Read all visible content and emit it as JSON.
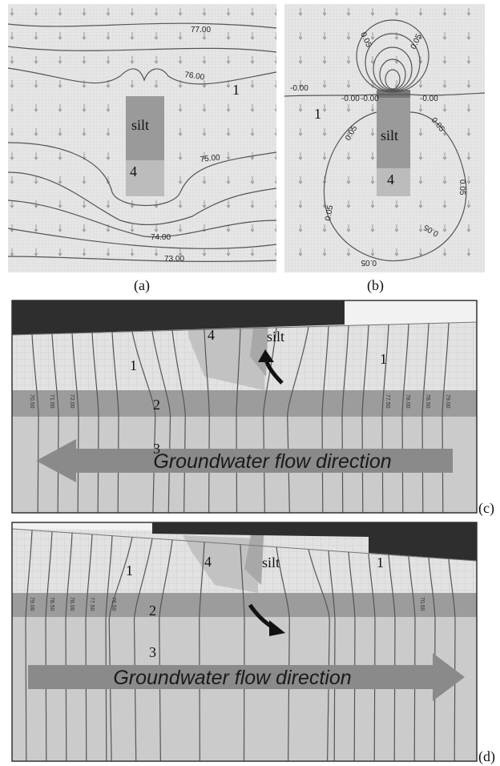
{
  "panel_a": {
    "caption": "(a)",
    "contour_labels": [
      "77.00",
      "76.00",
      "75.00",
      "74.00",
      "73.00"
    ],
    "zone_1": "1",
    "silt": "silt",
    "zone_4": "4"
  },
  "panel_b": {
    "caption": "(b)",
    "contour_labels_zero": [
      "-0.00",
      "-0.00",
      "-0.00",
      "-0.00"
    ],
    "contour_labels": [
      "0.05",
      "0.05",
      "0.05",
      "0.05",
      "0.05",
      "0.05",
      "0.05",
      "0.05"
    ],
    "zone_1": "1",
    "silt": "silt",
    "zone_4": "4"
  },
  "panel_c": {
    "caption": "(c)",
    "zone_1_left": "1",
    "zone_4": "4",
    "silt": "silt",
    "zone_1_right": "1",
    "zone_2": "2",
    "zone_3": "3",
    "arrow_text": "Groundwater flow direction",
    "contour_labels": [
      "70.50",
      "71.00",
      "72.00",
      "77.50",
      "78.00",
      "78.50",
      "79.00"
    ]
  },
  "panel_d": {
    "caption": "(d)",
    "zone_1_left": "1",
    "zone_4": "4",
    "silt": "silt",
    "zone_1_right": "1",
    "zone_2": "2",
    "zone_3": "3",
    "arrow_text": "Groundwater flow direction",
    "contour_labels": [
      "79.00",
      "78.50",
      "78.00",
      "77.50",
      "76.50",
      "70.50"
    ]
  }
}
